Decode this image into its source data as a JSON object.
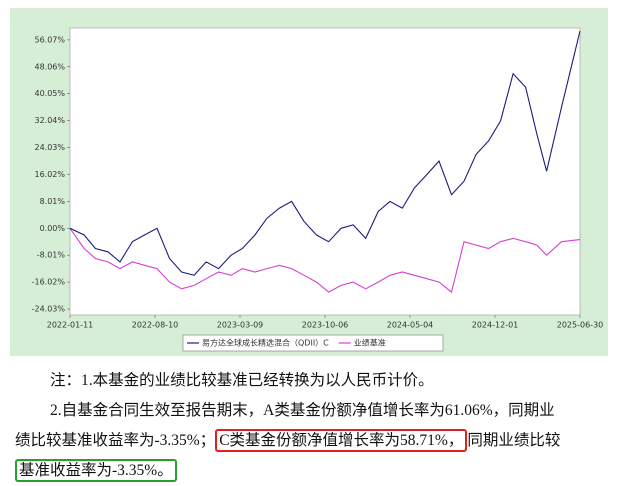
{
  "chart_data": {
    "type": "line",
    "x": [
      "2022-01-11",
      "2022-02-15",
      "2022-03-15",
      "2022-04-15",
      "2022-05-15",
      "2022-06-15",
      "2022-07-15",
      "2022-08-15",
      "2022-09-15",
      "2022-10-15",
      "2022-11-15",
      "2022-12-15",
      "2023-01-15",
      "2023-02-15",
      "2023-03-15",
      "2023-04-15",
      "2023-05-15",
      "2023-06-15",
      "2023-07-15",
      "2023-08-15",
      "2023-09-15",
      "2023-10-15",
      "2023-11-15",
      "2023-12-15",
      "2024-01-15",
      "2024-02-15",
      "2024-03-15",
      "2024-04-15",
      "2024-05-15",
      "2024-06-15",
      "2024-07-15",
      "2024-08-15",
      "2024-09-15",
      "2024-10-15",
      "2024-11-15",
      "2024-12-15",
      "2025-01-15",
      "2025-02-15",
      "2025-03-15",
      "2025-04-08",
      "2025-05-15",
      "2025-06-30"
    ],
    "series": [
      {
        "name": "易方达全球成长精选混合（QDII）C",
        "color": "#1c1c80",
        "values": [
          0,
          -2,
          -6,
          -7,
          -10,
          -4,
          -2,
          0,
          -9,
          -13,
          -14,
          -10,
          -12,
          -8,
          -6,
          -2,
          3,
          6,
          8,
          2,
          -2,
          -4,
          0,
          1,
          -3,
          5,
          8,
          6,
          12,
          16,
          20,
          10,
          14,
          22,
          26,
          32,
          46,
          42,
          28,
          17,
          36,
          58.71
        ]
      },
      {
        "name": "业绩基准",
        "color": "#d43fd4",
        "values": [
          0,
          -6,
          -9,
          -10,
          -12,
          -10,
          -11,
          -12,
          -16,
          -18,
          -17,
          -15,
          -13,
          -14,
          -12,
          -13,
          -12,
          -11,
          -12,
          -14,
          -16,
          -19,
          -17,
          -16,
          -18,
          -16,
          -14,
          -13,
          -14,
          -15,
          -16,
          -19,
          -4,
          -5,
          -6,
          -4,
          -3,
          -4,
          -5,
          -8,
          -4,
          -3.35
        ]
      }
    ],
    "xlim": [
      "2022-01-11",
      "2025-06-30"
    ],
    "xticks": [
      "2022-01-11",
      "2022-08-10",
      "2023-03-09",
      "2023-10-06",
      "2024-05-04",
      "2024-12-01",
      "2025-06-30"
    ],
    "ylim": [
      -25.8,
      59.6
    ],
    "yticks": [
      {
        "value": 56.07,
        "label": "56.07%"
      },
      {
        "value": 48.06,
        "label": "48.06%"
      },
      {
        "value": 40.05,
        "label": "40.05%"
      },
      {
        "value": 32.04,
        "label": "32.04%"
      },
      {
        "value": 24.03,
        "label": "24.03%"
      },
      {
        "value": 16.02,
        "label": "16.02%"
      },
      {
        "value": 8.01,
        "label": "8.01%"
      },
      {
        "value": 0,
        "label": "0.00%"
      },
      {
        "value": -8.01,
        "label": "-8.01%"
      },
      {
        "value": -16.02,
        "label": "-16.02%"
      },
      {
        "value": -24.03,
        "label": "-24.03%"
      }
    ]
  },
  "notes": [
    "注：1.本基金的业绩比较基准已经转换为以人民币计价。",
    "2.自基金合同生效至报告期末，A类基金份额净值增长率为61.06%，同期业",
    "绩比较基准收益率为-3.35%；",
    "C类基金份额净值增长率为58.71%，",
    "同期业绩比较",
    "基准收益率为-3.35%。"
  ]
}
